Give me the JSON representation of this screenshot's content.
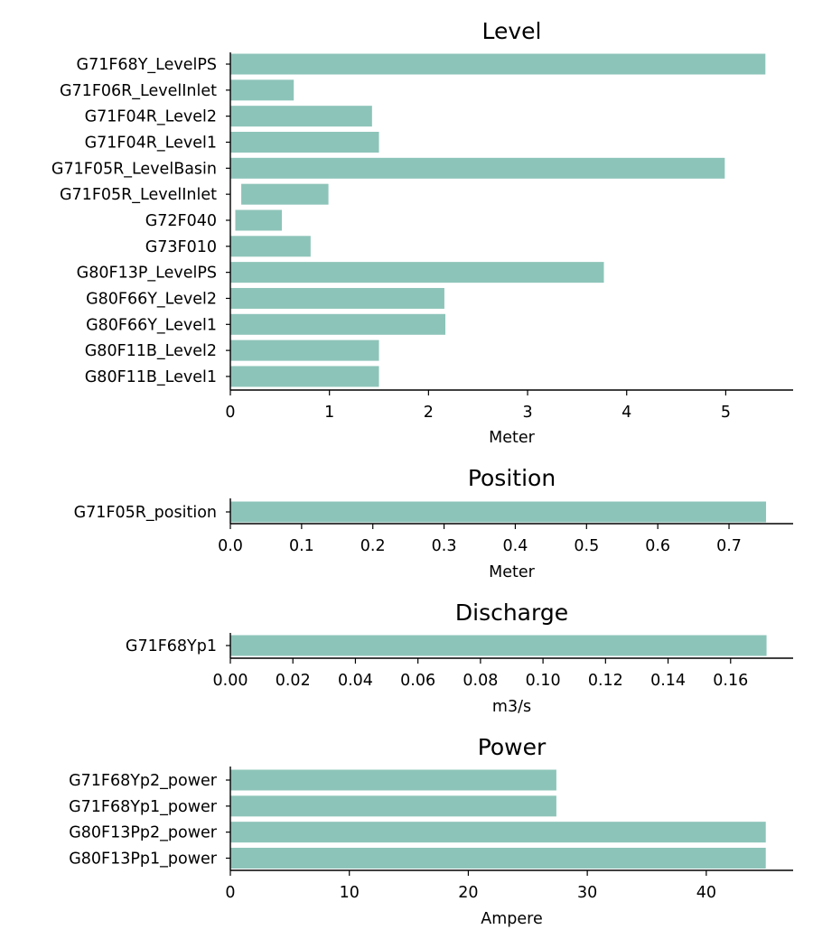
{
  "style": {
    "bar_color": "#8dc4b9"
  },
  "chart_data": [
    {
      "type": "bar",
      "orientation": "horizontal",
      "title": "Level",
      "xlabel": "Meter",
      "xlim": [
        0,
        5.68
      ],
      "xticks": [
        0,
        1,
        2,
        3,
        4,
        5
      ],
      "xtick_labels": [
        "0",
        "1",
        "2",
        "3",
        "4",
        "5"
      ],
      "grid": false,
      "bars": [
        {
          "label": "G71F68Y_LevelPS",
          "start": 0,
          "end": 5.4
        },
        {
          "label": "G71F06R_LevelInlet",
          "start": 0,
          "end": 0.64
        },
        {
          "label": "G71F04R_Level2",
          "start": 0,
          "end": 1.43
        },
        {
          "label": "G71F04R_Level1",
          "start": 0,
          "end": 1.5
        },
        {
          "label": "G71F05R_LevelBasin",
          "start": 0,
          "end": 4.99
        },
        {
          "label": "G71F05R_LevelInlet",
          "start": 0.11,
          "end": 0.99
        },
        {
          "label": "G72F040",
          "start": 0.05,
          "end": 0.52
        },
        {
          "label": "G73F010",
          "start": 0,
          "end": 0.81
        },
        {
          "label": "G80F13P_LevelPS",
          "start": 0,
          "end": 3.77
        },
        {
          "label": "G80F66Y_Level2",
          "start": 0,
          "end": 2.16
        },
        {
          "label": "G80F66Y_Level1",
          "start": 0,
          "end": 2.17
        },
        {
          "label": "G80F11B_Level2",
          "start": 0,
          "end": 1.5
        },
        {
          "label": "G80F11B_Level1",
          "start": 0,
          "end": 1.5
        }
      ]
    },
    {
      "type": "bar",
      "orientation": "horizontal",
      "title": "Position",
      "xlabel": "Meter",
      "xlim": [
        0,
        0.79
      ],
      "xticks": [
        0,
        0.1,
        0.2,
        0.3,
        0.4,
        0.5,
        0.6,
        0.7
      ],
      "xtick_labels": [
        "0.0",
        "0.1",
        "0.2",
        "0.3",
        "0.4",
        "0.5",
        "0.6",
        "0.7"
      ],
      "grid": false,
      "bars": [
        {
          "label": "G71F05R_position",
          "start": 0,
          "end": 0.752
        }
      ]
    },
    {
      "type": "bar",
      "orientation": "horizontal",
      "title": "Discharge",
      "xlabel": "m3/s",
      "xlim": [
        0,
        0.18
      ],
      "xticks": [
        0,
        0.02,
        0.04,
        0.06,
        0.08,
        0.1,
        0.12,
        0.14,
        0.16
      ],
      "xtick_labels": [
        "0.00",
        "0.02",
        "0.04",
        "0.06",
        "0.08",
        "0.10",
        "0.12",
        "0.14",
        "0.16"
      ],
      "grid": false,
      "bars": [
        {
          "label": "G71F68Yp1",
          "start": 0,
          "end": 0.1715
        }
      ]
    },
    {
      "type": "bar",
      "orientation": "horizontal",
      "title": "Power",
      "xlabel": "Ampere",
      "xlim": [
        0,
        47.3
      ],
      "xticks": [
        0,
        10,
        20,
        30,
        40
      ],
      "xtick_labels": [
        "0",
        "10",
        "20",
        "30",
        "40"
      ],
      "grid": false,
      "bars": [
        {
          "label": "G71F68Yp2_power",
          "start": 0,
          "end": 27.4
        },
        {
          "label": "G71F68Yp1_power",
          "start": 0,
          "end": 27.4
        },
        {
          "label": "G80F13Pp2_power",
          "start": 0,
          "end": 45.0
        },
        {
          "label": "G80F13Pp1_power",
          "start": 0,
          "end": 45.0
        }
      ]
    }
  ]
}
